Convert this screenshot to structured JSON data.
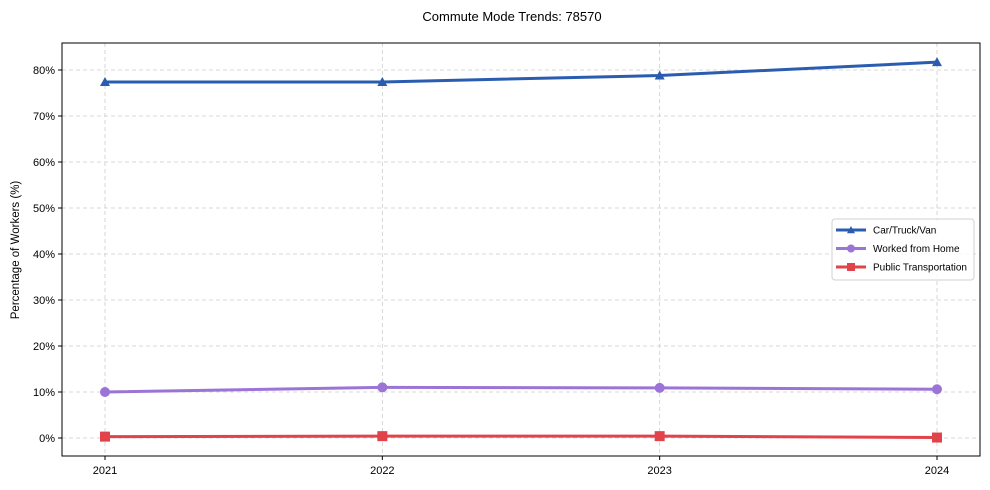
{
  "chart_data": {
    "type": "line",
    "title": "Commute Mode Trends: 78570",
    "xlabel": "",
    "ylabel": "Percentage of Workers (%)",
    "x": [
      "2021",
      "2022",
      "2023",
      "2024"
    ],
    "ylim": [
      -4,
      86
    ],
    "yticks": [
      0,
      10,
      20,
      30,
      40,
      50,
      60,
      70,
      80
    ],
    "ytick_labels": [
      "0%",
      "10%",
      "20%",
      "30%",
      "40%",
      "50%",
      "60%",
      "70%",
      "80%"
    ],
    "grid": true,
    "legend_position": "center right",
    "series": [
      {
        "name": "Car/Truck/Van",
        "values": [
          77.4,
          77.4,
          78.8,
          81.7
        ],
        "color": "#2a5db0",
        "marker": "triangle"
      },
      {
        "name": "Worked from Home",
        "values": [
          10.0,
          11.0,
          10.9,
          10.6
        ],
        "color": "#9b74d6",
        "marker": "circle"
      },
      {
        "name": "Public Transportation",
        "values": [
          0.3,
          0.4,
          0.4,
          0.1
        ],
        "color": "#e0434a",
        "marker": "square"
      }
    ]
  }
}
